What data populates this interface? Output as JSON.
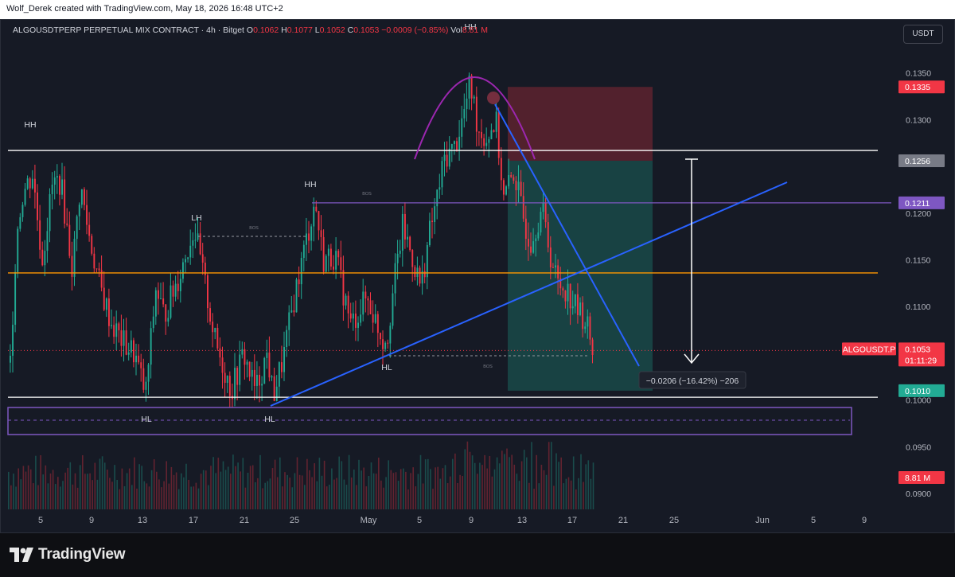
{
  "header": {
    "credit": "Wolf_Derek created with TradingView.com, May 18, 2026 16:48 UTC+2"
  },
  "legend": {
    "symbol": "ALGOUSDTPERP PERPETUAL MIX CONTRACT · 4h · Bitget",
    "o_key": "O",
    "o_val": "0.1062",
    "h_key": "H",
    "h_val": "0.1077",
    "l_key": "L",
    "l_val": "0.1052",
    "c_key": "C",
    "c_val": "0.1053",
    "change": "−0.0009 (−0.85%)",
    "vol_key": "Vol",
    "vol_val": "8.81 M"
  },
  "currency_button": "USDT",
  "footer": {
    "brand": "TradingView"
  },
  "colors": {
    "up": "#22ab94",
    "down": "#f23645",
    "background": "#161a25",
    "white_level": "#ffffff",
    "purple_level": "#7e57c2",
    "orange_level": "#ff9800",
    "trendline": "#2962ff",
    "arc": "#9c27b0"
  },
  "chart_data": {
    "type": "candlestick",
    "y_range": [
      0.0895,
      0.1382
    ],
    "x_tick_labels": [
      "5",
      "9",
      "13",
      "17",
      "21",
      "25",
      "May",
      "5",
      "9",
      "13",
      "17",
      "21",
      "25",
      "Jun",
      "5",
      "9"
    ],
    "y_tick_labels": [
      "0.1350",
      "0.1300",
      "0.1250",
      "0.1200",
      "0.1150",
      "0.1100",
      "0.1050",
      "0.1000",
      "0.0950",
      "0.0900"
    ],
    "price_badges": [
      {
        "label": "0.1335",
        "color": "#f23645"
      },
      {
        "label": "0.1256",
        "color": "#787b86"
      },
      {
        "label": "0.1211",
        "color": "#7e57c2"
      },
      {
        "label": "0.1053",
        "color": "#f23645"
      },
      {
        "label": "01:11:29",
        "color": "#f23645"
      },
      {
        "label": "0.1010",
        "color": "#22ab94"
      },
      {
        "label": "8.81 M",
        "color": "#f23645"
      }
    ],
    "symbol_badge": "ALGOUSDT.P",
    "horizontal_levels": [
      0.1267,
      0.1211,
      0.1136,
      0.1003
    ],
    "annotations": [
      "HH",
      "HH",
      "LH",
      "HH",
      "HH",
      "HL",
      "HL",
      "HL",
      "BOS",
      "BOS",
      "BOS"
    ],
    "measure_label": "−0.0206 (−16.42%) −206",
    "volume_last": "8.81 M"
  }
}
